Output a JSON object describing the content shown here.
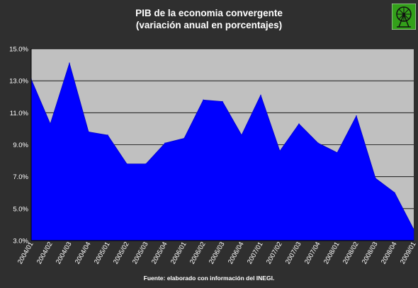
{
  "title_line1": "PIB de la economia convergente",
  "title_line2": "(variación anual en porcentajes)",
  "source_note": "Fuente: elaborado con información del INEGI.",
  "logo_icon": "ferris-wheel-icon",
  "colors": {
    "background": "#2f2f2f",
    "plot_background": "#c0c0c0",
    "area_fill": "#0000ff",
    "logo_background": "#33a01a"
  },
  "chart_data": {
    "type": "area",
    "title": "PIB de la economia convergente",
    "subtitle": "(variación anual en porcentajes)",
    "xlabel": "",
    "ylabel": "",
    "grid": true,
    "ylim": [
      3.0,
      15.0
    ],
    "yticks": [
      "3.0%",
      "5.0%",
      "7.0%",
      "9.0%",
      "11.0%",
      "13.0%",
      "15.0%"
    ],
    "categories": [
      "2004/01",
      "2004/02",
      "2004/03",
      "2004/04",
      "2005/01",
      "2005/02",
      "2005/03",
      "2005/04",
      "2006/01",
      "2006/02",
      "2006/03",
      "2006/04",
      "2007/01",
      "2007/02",
      "2007/03",
      "2007/04",
      "2008/01",
      "2008/02",
      "2008/03",
      "2008/04",
      "2009/01"
    ],
    "values": [
      13.1,
      10.3,
      14.1,
      9.8,
      9.6,
      7.8,
      7.8,
      9.1,
      9.4,
      11.8,
      11.7,
      9.6,
      12.1,
      8.6,
      10.3,
      9.1,
      8.5,
      10.8,
      6.9,
      6.0,
      3.7
    ]
  }
}
